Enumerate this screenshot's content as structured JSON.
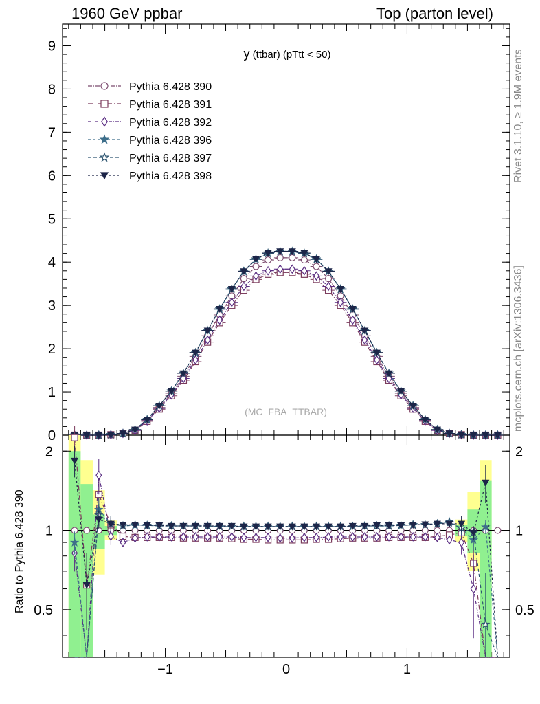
{
  "header": {
    "left": "1960 GeV ppbar",
    "right": "Top (parton level)"
  },
  "side": {
    "rivet": "Rivet 3.1.10, ≥ 1.9M events",
    "mcplots": "mcplots.cern.ch [arXiv:1306.3436]"
  },
  "chart_data": [
    {
      "type": "line",
      "title_main": "y",
      "title_rest": " (ttbar)  (pTtt < 50)",
      "watermark": "(MC_FBA_TTBAR)",
      "xlim": [
        -1.85,
        1.85
      ],
      "ylim": [
        0,
        9.5
      ],
      "y_ticks": [
        "0",
        "1",
        "2",
        "3",
        "4",
        "5",
        "6",
        "7",
        "8",
        "9"
      ],
      "legend_position": "top-left",
      "x": [
        -1.75,
        -1.65,
        -1.55,
        -1.45,
        -1.35,
        -1.25,
        -1.15,
        -1.05,
        -0.95,
        -0.85,
        -0.75,
        -0.65,
        -0.55,
        -0.45,
        -0.35,
        -0.25,
        -0.15,
        -0.05,
        0.05,
        0.15,
        0.25,
        0.35,
        0.45,
        0.55,
        0.65,
        0.75,
        0.85,
        0.95,
        1.05,
        1.15,
        1.25,
        1.35,
        1.45,
        1.55,
        1.65,
        1.75
      ],
      "series": [
        {
          "name": "Pythia 6.428 390",
          "marker": "circle-open",
          "color": "#7b4a6e",
          "dash": "6,2,1,2",
          "values": [
            0.0,
            0.0,
            0.0,
            0.01,
            0.04,
            0.12,
            0.34,
            0.64,
            0.97,
            1.36,
            1.82,
            2.3,
            2.78,
            3.22,
            3.62,
            3.9,
            4.05,
            4.1,
            4.1,
            4.05,
            3.9,
            3.62,
            3.22,
            2.78,
            2.3,
            1.82,
            1.36,
            0.97,
            0.64,
            0.34,
            0.12,
            0.04,
            0.01,
            0.0,
            0.0,
            0.0
          ]
        },
        {
          "name": "Pythia 6.428 391",
          "marker": "square-open",
          "color": "#7b3b5c",
          "dash": "7,3,1,3",
          "values": [
            0.0,
            0.0,
            0.0,
            0.01,
            0.04,
            0.11,
            0.32,
            0.6,
            0.91,
            1.27,
            1.7,
            2.15,
            2.6,
            3.0,
            3.35,
            3.6,
            3.72,
            3.76,
            3.76,
            3.72,
            3.6,
            3.35,
            3.0,
            2.6,
            2.15,
            1.7,
            1.27,
            0.91,
            0.6,
            0.32,
            0.11,
            0.04,
            0.01,
            0.0,
            0.0,
            0.0
          ]
        },
        {
          "name": "Pythia 6.428 392",
          "marker": "diamond-open",
          "color": "#5a2d82",
          "dash": "5,2,1,2",
          "values": [
            0.0,
            0.0,
            0.0,
            0.01,
            0.04,
            0.11,
            0.33,
            0.62,
            0.93,
            1.31,
            1.74,
            2.2,
            2.66,
            3.07,
            3.44,
            3.68,
            3.8,
            3.84,
            3.84,
            3.8,
            3.68,
            3.44,
            3.07,
            2.66,
            2.2,
            1.74,
            1.31,
            0.93,
            0.62,
            0.33,
            0.11,
            0.04,
            0.01,
            0.0,
            0.0,
            0.0
          ]
        },
        {
          "name": "Pythia 6.428 396",
          "marker": "star-filled",
          "color": "#3d6e8a",
          "dash": "4,3",
          "values": [
            0.0,
            0.0,
            0.0,
            0.01,
            0.04,
            0.13,
            0.36,
            0.68,
            1.02,
            1.43,
            1.9,
            2.41,
            2.91,
            3.37,
            3.78,
            4.06,
            4.2,
            4.24,
            4.24,
            4.2,
            4.06,
            3.78,
            3.37,
            2.91,
            2.41,
            1.9,
            1.43,
            1.02,
            0.68,
            0.36,
            0.13,
            0.04,
            0.01,
            0.0,
            0.0,
            0.0
          ]
        },
        {
          "name": "Pythia 6.428 397",
          "marker": "star-open",
          "color": "#2d5570",
          "dash": "5,3",
          "values": [
            0.0,
            0.0,
            0.0,
            0.01,
            0.04,
            0.13,
            0.36,
            0.68,
            1.02,
            1.43,
            1.91,
            2.42,
            2.92,
            3.38,
            3.79,
            4.07,
            4.21,
            4.25,
            4.25,
            4.21,
            4.07,
            3.79,
            3.38,
            2.92,
            2.42,
            1.91,
            1.43,
            1.02,
            0.68,
            0.36,
            0.13,
            0.04,
            0.01,
            0.0,
            0.0,
            0.0
          ]
        },
        {
          "name": "Pythia 6.428 398",
          "marker": "triangle-down-filled",
          "color": "#1c2548",
          "dash": "3,3",
          "values": [
            0.0,
            0.0,
            0.0,
            0.01,
            0.04,
            0.13,
            0.36,
            0.68,
            1.02,
            1.43,
            1.91,
            2.42,
            2.92,
            3.38,
            3.79,
            4.07,
            4.21,
            4.25,
            4.25,
            4.21,
            4.07,
            3.79,
            3.38,
            2.92,
            2.42,
            1.91,
            1.43,
            1.02,
            0.68,
            0.36,
            0.13,
            0.04,
            0.01,
            0.0,
            0.0,
            0.0
          ]
        }
      ]
    },
    {
      "type": "line",
      "ylabel": "Ratio to Pythia 6.428 390",
      "xlim": [
        -1.85,
        1.85
      ],
      "ylim": [
        0.33,
        2.3
      ],
      "x_ticks": [
        "−1",
        "0",
        "1"
      ],
      "y_ticks": [
        "0.5",
        "1",
        "2"
      ],
      "reference_line": 1,
      "band_inner_color": "#90f090",
      "band_outer_color": "#ffff90",
      "bands": [
        {
          "x": -1.75,
          "inner": [
            0.33,
            2.0
          ],
          "outer": [
            0.33,
            2.3
          ]
        },
        {
          "x": -1.65,
          "inner": [
            0.33,
            1.5
          ],
          "outer": [
            0.33,
            1.85
          ]
        },
        {
          "x": -1.55,
          "inner": [
            0.85,
            1.15
          ],
          "outer": [
            0.68,
            1.42
          ]
        },
        {
          "x": -1.45,
          "inner": [
            0.96,
            1.04
          ],
          "outer": [
            0.92,
            1.09
          ]
        },
        {
          "x": 1.45,
          "inner": [
            0.95,
            1.05
          ],
          "outer": [
            0.9,
            1.1
          ]
        },
        {
          "x": 1.55,
          "inner": [
            0.82,
            1.2
          ],
          "outer": [
            0.7,
            1.4
          ]
        },
        {
          "x": 1.65,
          "inner": [
            0.33,
            1.55
          ],
          "outer": [
            0.33,
            1.85
          ]
        }
      ],
      "x": [
        -1.75,
        -1.65,
        -1.55,
        -1.45,
        -1.35,
        -1.25,
        -1.15,
        -1.05,
        -0.95,
        -0.85,
        -0.75,
        -0.65,
        -0.55,
        -0.45,
        -0.35,
        -0.25,
        -0.15,
        -0.05,
        0.05,
        0.15,
        0.25,
        0.35,
        0.45,
        0.55,
        0.65,
        0.75,
        0.85,
        0.95,
        1.05,
        1.15,
        1.25,
        1.35,
        1.45,
        1.55,
        1.65,
        1.75
      ],
      "series": [
        {
          "name": "Pythia 6.428 391",
          "values": [
            2.25,
            0.62,
            1.37,
            1.05,
            0.95,
            0.94,
            0.94,
            0.94,
            0.94,
            0.935,
            0.935,
            0.935,
            0.935,
            0.93,
            0.925,
            0.925,
            0.92,
            0.92,
            0.92,
            0.92,
            0.925,
            0.925,
            0.93,
            0.935,
            0.935,
            0.935,
            0.94,
            0.94,
            0.94,
            0.94,
            0.95,
            0.96,
            0.98,
            0.75,
            0.33,
            0.33
          ]
        },
        {
          "name": "Pythia 6.428 392",
          "values": [
            0.82,
            0.33,
            1.62,
            0.95,
            0.9,
            0.935,
            0.945,
            0.945,
            0.945,
            0.945,
            0.945,
            0.945,
            0.945,
            0.945,
            0.94,
            0.94,
            0.94,
            0.935,
            0.935,
            0.94,
            0.94,
            0.945,
            0.945,
            0.945,
            0.945,
            0.945,
            0.945,
            0.945,
            0.945,
            0.945,
            0.94,
            0.92,
            0.9,
            0.6,
            0.33,
            0.33
          ]
        },
        {
          "name": "Pythia 6.428 396",
          "values": [
            0.9,
            0.33,
            1.2,
            1.06,
            1.04,
            1.045,
            1.045,
            1.04,
            1.04,
            1.04,
            1.04,
            1.04,
            1.035,
            1.035,
            1.035,
            1.035,
            1.035,
            1.035,
            1.035,
            1.035,
            1.035,
            1.035,
            1.035,
            1.035,
            1.04,
            1.04,
            1.04,
            1.045,
            1.05,
            1.05,
            1.06,
            1.08,
            1.02,
            0.92,
            1.03,
            0.33
          ]
        },
        {
          "name": "Pythia 6.428 397",
          "values": [
            0.33,
            0.33,
            1.15,
            1.06,
            1.04,
            1.05,
            1.045,
            1.04,
            1.04,
            1.04,
            1.04,
            1.04,
            1.035,
            1.035,
            1.035,
            1.035,
            1.035,
            1.035,
            1.035,
            1.035,
            1.035,
            1.035,
            1.035,
            1.035,
            1.04,
            1.04,
            1.04,
            1.045,
            1.05,
            1.05,
            1.06,
            1.07,
            1.02,
            0.98,
            0.44,
            0.33
          ]
        },
        {
          "name": "Pythia 6.428 398",
          "values": [
            1.84,
            0.62,
            1.1,
            1.06,
            1.05,
            1.05,
            1.045,
            1.045,
            1.04,
            1.04,
            1.04,
            1.04,
            1.04,
            1.04,
            1.035,
            1.035,
            1.035,
            1.035,
            1.035,
            1.035,
            1.035,
            1.035,
            1.035,
            1.04,
            1.04,
            1.045,
            1.045,
            1.045,
            1.05,
            1.055,
            1.06,
            1.06,
            1.06,
            0.98,
            1.52,
            0.33
          ]
        }
      ]
    }
  ]
}
